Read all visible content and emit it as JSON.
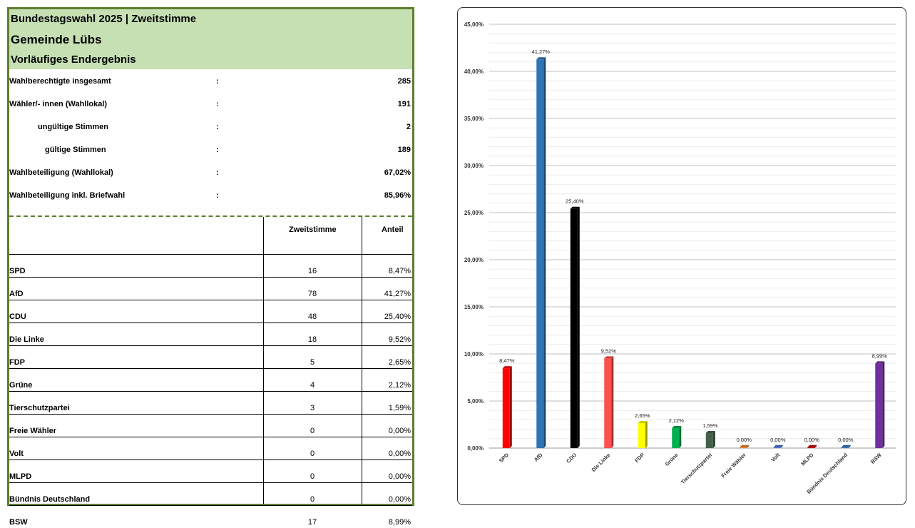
{
  "header": {
    "title": "Bundestagswahl 2025  | Zweitstimme",
    "municipality": "Gemeinde Lübs",
    "status": "Vorläufiges Endergebnis"
  },
  "stats": [
    {
      "label": "Wahlberechtigte insgesamt",
      "value": "285",
      "indent": 0
    },
    {
      "label": "Wähler/- innen (Wahllokal)",
      "value": "191",
      "indent": 0
    },
    {
      "label": "ungültige Stimmen",
      "value": "2",
      "indent": 40
    },
    {
      "label": "gültige Stimmen",
      "value": "189",
      "indent": 50
    },
    {
      "label": "Wahlbeteiligung (Wahllokal)",
      "value": "67,02%",
      "indent": 0
    },
    {
      "label": "Wahlbeteiligung inkl. Briefwahl",
      "value": "85,96%",
      "indent": 0
    }
  ],
  "colon": ":",
  "table": {
    "col_votes": "Zweitstimme",
    "col_share": "Anteil",
    "rows": [
      {
        "party": "SPD",
        "votes": "16",
        "share": "8,47%"
      },
      {
        "party": "AfD",
        "votes": "78",
        "share": "41,27%"
      },
      {
        "party": "CDU",
        "votes": "48",
        "share": "25,40%"
      },
      {
        "party": "Die Linke",
        "votes": "18",
        "share": "9,52%"
      },
      {
        "party": "FDP",
        "votes": "5",
        "share": "2,65%"
      },
      {
        "party": "Grüne",
        "votes": "4",
        "share": "2,12%"
      },
      {
        "party": "Tierschutzpartei",
        "votes": "3",
        "share": "1,59%"
      },
      {
        "party": "Freie Wähler",
        "votes": "0",
        "share": "0,00%"
      },
      {
        "party": "Volt",
        "votes": "0",
        "share": "0,00%"
      },
      {
        "party": "MLPD",
        "votes": "0",
        "share": "0,00%"
      },
      {
        "party": "Bündnis Deutschland",
        "votes": "0",
        "share": "0,00%"
      },
      {
        "party": "BSW",
        "votes": "17",
        "share": "8,99%"
      }
    ]
  },
  "chart_data": {
    "type": "bar",
    "categories": [
      "SPD",
      "AfD",
      "CDU",
      "Die Linke",
      "FDP",
      "Grüne",
      "Tierschutzpartei",
      "Freie Wähler",
      "Volt",
      "MLPD",
      "Bündnis Deutschland",
      "BSW"
    ],
    "values": [
      8.47,
      41.27,
      25.4,
      9.52,
      2.65,
      2.12,
      1.59,
      0.0,
      0.0,
      0.0,
      0.0,
      8.99
    ],
    "data_labels": [
      "8,47%",
      "41,27%",
      "25,40%",
      "9,52%",
      "2,65%",
      "2,12%",
      "1,59%",
      "0,00%",
      "0,00%",
      "0,00%",
      "0,00%",
      "8,99%"
    ],
    "colors": [
      "#ff0000",
      "#2e75b6",
      "#000000",
      "#ff5050",
      "#ffff00",
      "#00b050",
      "#44604a",
      "#ed7d31",
      "#4472c4",
      "#c00000",
      "#2e75b6",
      "#7030a0"
    ],
    "ylim": [
      0,
      45
    ],
    "yticks": [
      0,
      5,
      10,
      15,
      20,
      25,
      30,
      35,
      40,
      45
    ],
    "ytick_labels": [
      "0,00%",
      "5,00%",
      "10,00%",
      "15,00%",
      "20,00%",
      "25,00%",
      "30,00%",
      "35,00%",
      "40,00%",
      "45,00%"
    ],
    "grid": true,
    "legend": "none",
    "title": "",
    "xlabel": "",
    "ylabel": ""
  }
}
